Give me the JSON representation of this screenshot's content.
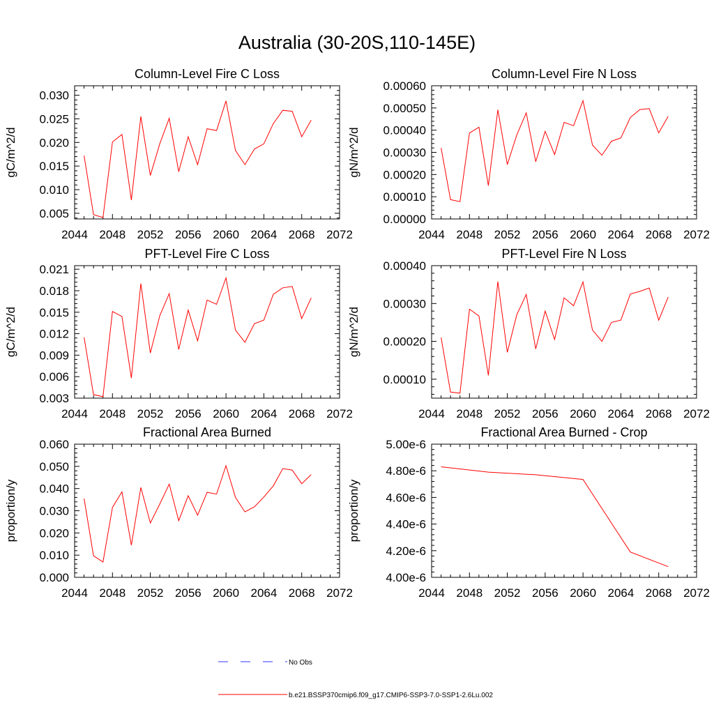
{
  "title": "Australia (30-20S,110-145E)",
  "colors": {
    "series": "#ff0000",
    "obs": "#3333ff",
    "axis": "#000000"
  },
  "legend": [
    {
      "label": "No Obs",
      "style": "dashed",
      "color": "#3333ff"
    },
    {
      "label": "b.e21.BSSP370cmip6.f09_g17.CMIP6-SSP3-7.0-SSP1-2.6Lu.002",
      "style": "solid",
      "color": "#ff0000"
    }
  ],
  "chart_data": [
    {
      "type": "line",
      "title": "Column-Level Fire C Loss",
      "ylabel": "gC/m^2/d",
      "xlim": [
        2044,
        2072
      ],
      "ylim": [
        0.0038,
        0.032
      ],
      "xticks": [
        "2044",
        "2048",
        "2052",
        "2056",
        "2060",
        "2064",
        "2068",
        "2072"
      ],
      "yticks": [
        "0.005",
        "0.010",
        "0.015",
        "0.020",
        "0.025",
        "0.030"
      ],
      "ytick_values": [
        0.005,
        0.01,
        0.015,
        0.02,
        0.025,
        0.03
      ],
      "x": [
        2045,
        2046,
        2047,
        2048,
        2049,
        2050,
        2051,
        2052,
        2053,
        2054,
        2055,
        2056,
        2057,
        2058,
        2059,
        2060,
        2061,
        2062,
        2063,
        2064,
        2065,
        2066,
        2067,
        2068,
        2069
      ],
      "series": [
        {
          "values": [
            0.0172,
            0.0047,
            0.0041,
            0.0201,
            0.0217,
            0.0078,
            0.0255,
            0.013,
            0.0197,
            0.0251,
            0.0138,
            0.0212,
            0.0153,
            0.0229,
            0.0225,
            0.0288,
            0.0183,
            0.0153,
            0.0186,
            0.0197,
            0.024,
            0.0268,
            0.0266,
            0.0212,
            0.0247
          ]
        }
      ]
    },
    {
      "type": "line",
      "title": "Column-Level Fire N Loss",
      "ylabel": "gN/m^2/d",
      "xlim": [
        2044,
        2072
      ],
      "ylim": [
        0.0,
        0.0006
      ],
      "xticks": [
        "2044",
        "2048",
        "2052",
        "2056",
        "2060",
        "2064",
        "2068",
        "2072"
      ],
      "yticks": [
        "0.00000",
        "0.00010",
        "0.00020",
        "0.00030",
        "0.00040",
        "0.00050",
        "0.00060"
      ],
      "ytick_values": [
        0.0,
        0.0001,
        0.0002,
        0.0003,
        0.0004,
        0.0005,
        0.0006
      ],
      "x": [
        2045,
        2046,
        2047,
        2048,
        2049,
        2050,
        2051,
        2052,
        2053,
        2054,
        2055,
        2056,
        2057,
        2058,
        2059,
        2060,
        2061,
        2062,
        2063,
        2064,
        2065,
        2066,
        2067,
        2068,
        2069
      ],
      "series": [
        {
          "values": [
            0.00032,
            8.7e-05,
            7.8e-05,
            0.000387,
            0.000413,
            0.00015,
            0.000492,
            0.000245,
            0.000378,
            0.000478,
            0.000258,
            0.000395,
            0.00029,
            0.000435,
            0.00042,
            0.000533,
            0.000333,
            0.000287,
            0.00035,
            0.000365,
            0.000457,
            0.000493,
            0.000497,
            0.000388,
            0.000462
          ]
        }
      ]
    },
    {
      "type": "line",
      "title": "PFT-Level Fire C Loss",
      "ylabel": "gC/m^2/d",
      "xlim": [
        2044,
        2072
      ],
      "ylim": [
        0.003,
        0.0215
      ],
      "xticks": [
        "2044",
        "2048",
        "2052",
        "2056",
        "2060",
        "2064",
        "2068",
        "2072"
      ],
      "yticks": [
        "0.003",
        "0.006",
        "0.009",
        "0.012",
        "0.015",
        "0.018",
        "0.021"
      ],
      "ytick_values": [
        0.003,
        0.006,
        0.009,
        0.012,
        0.015,
        0.018,
        0.021
      ],
      "x": [
        2045,
        2046,
        2047,
        2048,
        2049,
        2050,
        2051,
        2052,
        2053,
        2054,
        2055,
        2056,
        2057,
        2058,
        2059,
        2060,
        2061,
        2062,
        2063,
        2064,
        2065,
        2066,
        2067,
        2068,
        2069
      ],
      "series": [
        {
          "values": [
            0.0115,
            0.0035,
            0.0032,
            0.0151,
            0.0144,
            0.0058,
            0.019,
            0.0093,
            0.0145,
            0.0176,
            0.0098,
            0.0153,
            0.011,
            0.0167,
            0.0161,
            0.0198,
            0.0125,
            0.0108,
            0.0134,
            0.0139,
            0.0175,
            0.0184,
            0.0186,
            0.0141,
            0.017
          ]
        }
      ]
    },
    {
      "type": "line",
      "title": "PFT-Level Fire N Loss",
      "ylabel": "gN/m^2/d",
      "xlim": [
        2044,
        2072
      ],
      "ylim": [
        5e-05,
        0.0004
      ],
      "xticks": [
        "2044",
        "2048",
        "2052",
        "2056",
        "2060",
        "2064",
        "2068",
        "2072"
      ],
      "yticks": [
        "0.00010",
        "0.00020",
        "0.00030",
        "0.00040"
      ],
      "ytick_values": [
        0.0001,
        0.0002,
        0.0003,
        0.0004
      ],
      "x": [
        2045,
        2046,
        2047,
        2048,
        2049,
        2050,
        2051,
        2052,
        2053,
        2054,
        2055,
        2056,
        2057,
        2058,
        2059,
        2060,
        2061,
        2062,
        2063,
        2064,
        2065,
        2066,
        2067,
        2068,
        2069
      ],
      "series": [
        {
          "values": [
            0.00021,
            6.6e-05,
            6.3e-05,
            0.000285,
            0.000267,
            0.00011,
            0.000358,
            0.000171,
            0.00027,
            0.000324,
            0.00018,
            0.00028,
            0.000205,
            0.000315,
            0.000294,
            0.000357,
            0.00023,
            0.0002,
            0.00025,
            0.000256,
            0.000325,
            0.000332,
            0.000341,
            0.000256,
            0.000317
          ]
        }
      ]
    },
    {
      "type": "line",
      "title": "Fractional Area Burned",
      "ylabel": "proportion/y",
      "xlim": [
        2044,
        2072
      ],
      "ylim": [
        0.0,
        0.06
      ],
      "xticks": [
        "2044",
        "2048",
        "2052",
        "2056",
        "2060",
        "2064",
        "2068",
        "2072"
      ],
      "yticks": [
        "0.000",
        "0.010",
        "0.020",
        "0.030",
        "0.040",
        "0.050",
        "0.060"
      ],
      "ytick_values": [
        0.0,
        0.01,
        0.02,
        0.03,
        0.04,
        0.05,
        0.06
      ],
      "x": [
        2045,
        2046,
        2047,
        2048,
        2049,
        2050,
        2051,
        2052,
        2053,
        2054,
        2055,
        2056,
        2057,
        2058,
        2059,
        2060,
        2061,
        2062,
        2063,
        2064,
        2065,
        2066,
        2067,
        2068,
        2069
      ],
      "series": [
        {
          "values": [
            0.0355,
            0.0097,
            0.0069,
            0.0315,
            0.0385,
            0.0145,
            0.0405,
            0.0245,
            0.033,
            0.042,
            0.0255,
            0.0368,
            0.028,
            0.0383,
            0.0375,
            0.0503,
            0.036,
            0.0295,
            0.0318,
            0.0362,
            0.0412,
            0.049,
            0.0483,
            0.0422,
            0.0463
          ]
        }
      ]
    },
    {
      "type": "line",
      "title": "Fractional Area Burned - Crop",
      "ylabel": "proportion/y",
      "xlim": [
        2044,
        2072
      ],
      "ylim": [
        4e-06,
        5e-06
      ],
      "xticks": [
        "2044",
        "2048",
        "2052",
        "2056",
        "2060",
        "2064",
        "2068",
        "2072"
      ],
      "yticks": [
        "4.00e-6",
        "4.20e-6",
        "4.40e-6",
        "4.60e-6",
        "4.80e-6",
        "5.00e-6"
      ],
      "ytick_values": [
        4e-06,
        4.2e-06,
        4.4e-06,
        4.6e-06,
        4.8e-06,
        5e-06
      ],
      "x": [
        2045,
        2050,
        2055,
        2060,
        2065,
        2069
      ],
      "series": [
        {
          "values": [
            4.83e-06,
            4.79e-06,
            4.77e-06,
            4.735e-06,
            4.19e-06,
            4.08e-06
          ]
        }
      ]
    }
  ]
}
